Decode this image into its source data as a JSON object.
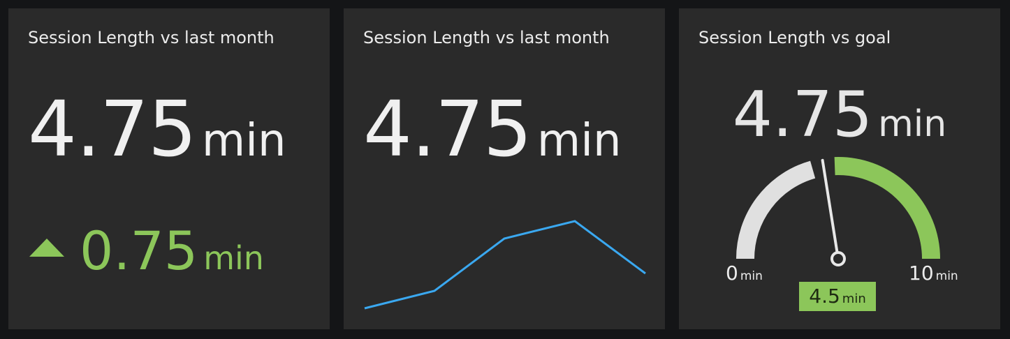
{
  "cards": [
    {
      "title": "Session Length vs last month",
      "value": "4.75",
      "unit": "min",
      "delta": {
        "value": "0.75",
        "unit": "min",
        "direction": "up",
        "color": "#8cc65a"
      }
    },
    {
      "title": "Session Length vs last month",
      "value": "4.75",
      "unit": "min"
    },
    {
      "title": "Session Length vs goal",
      "value": "4.75",
      "unit": "min",
      "gauge": {
        "min": "0",
        "min_unit": "min",
        "max": "10",
        "max_unit": "min",
        "goal": "4.5",
        "goal_unit": "min",
        "track_color": "#e0e0e0",
        "fill_color": "#8cc65a"
      }
    }
  ],
  "chart_data": {
    "type": "line",
    "x": [
      0,
      1,
      2,
      3,
      4
    ],
    "y": [
      0,
      0.2,
      0.8,
      1.0,
      0.4
    ],
    "series": [
      {
        "values": [
          0,
          0.2,
          0.8,
          1.0,
          0.4
        ],
        "color": "#3aa8f0"
      }
    ]
  },
  "colors": {
    "background": "#141517",
    "card": "#2a2a2a",
    "positive": "#8cc65a",
    "line": "#3aa8f0"
  }
}
